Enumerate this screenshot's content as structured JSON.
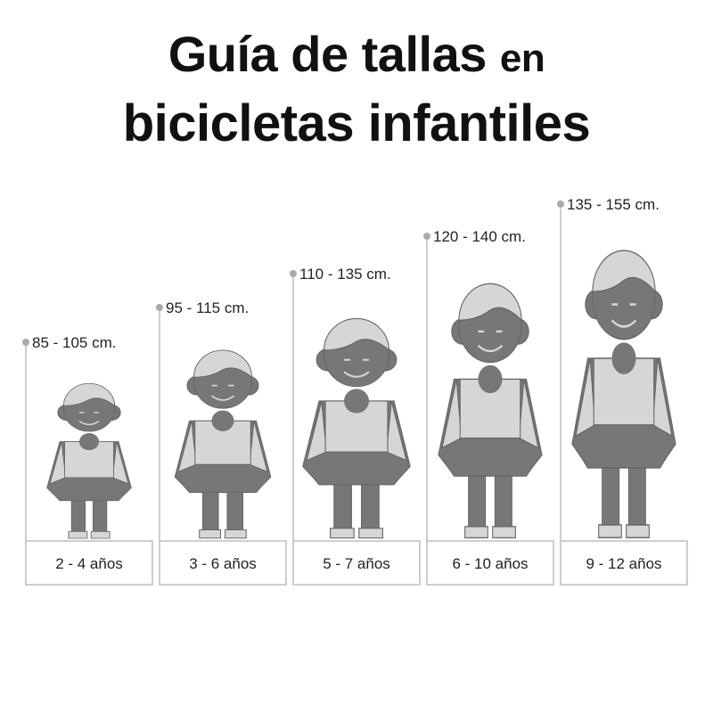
{
  "title": {
    "line1_main": "Guía de tallas",
    "line1_small": "en",
    "line2": "bicicletas infantiles"
  },
  "colors": {
    "dark": "#777777",
    "light": "#d6d6d6",
    "line": "#bdbdbd"
  },
  "sizes": [
    {
      "height": "85 - 105 cm.",
      "age": "2 - 4 años"
    },
    {
      "height": "95 - 115 cm.",
      "age": "3 - 6 años"
    },
    {
      "height": "110 - 135 cm.",
      "age": "5 - 7 años"
    },
    {
      "height": "120 - 140 cm.",
      "age": "6 - 10 años"
    },
    {
      "height": "135 - 155 cm.",
      "age": "9 - 12 años"
    }
  ]
}
